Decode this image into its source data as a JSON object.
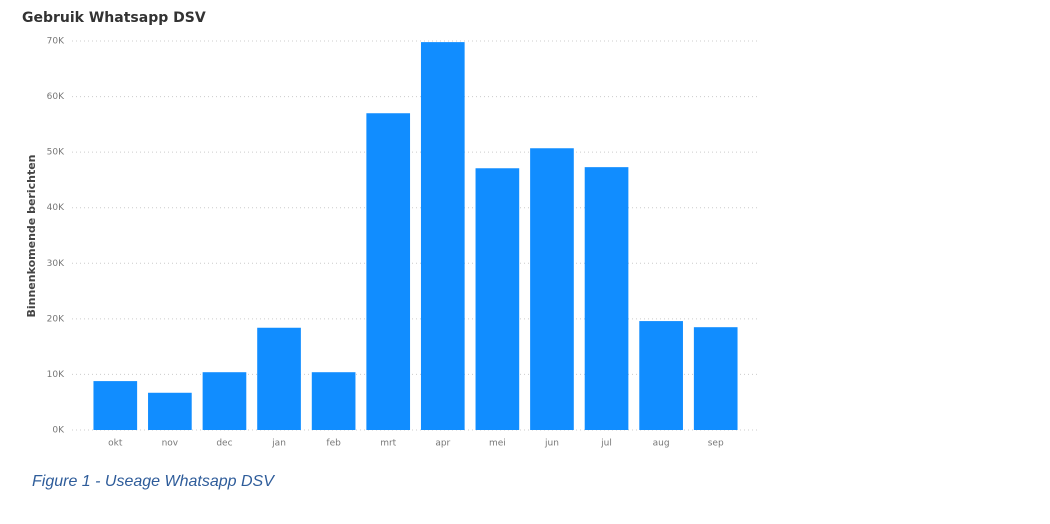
{
  "chart_data": {
    "type": "bar",
    "title": "Gebruik Whatsapp DSV",
    "y_label": "Binnenkomende berichten",
    "caption": "Figure 1 - Useage Whatsapp DSV",
    "categories": [
      "okt",
      "nov",
      "dec",
      "jan",
      "feb",
      "mrt",
      "apr",
      "mei",
      "jun",
      "jul",
      "aug",
      "sep"
    ],
    "values": [
      8800,
      6700,
      10400,
      18400,
      10400,
      57000,
      69800,
      47100,
      50700,
      47300,
      19600,
      18500
    ],
    "color": "#118dff",
    "ylim": [
      0,
      70000
    ],
    "yticks": [
      {
        "value": 0,
        "label": "0K"
      },
      {
        "value": 10000,
        "label": "10K"
      },
      {
        "value": 20000,
        "label": "20K"
      },
      {
        "value": 30000,
        "label": "30K"
      },
      {
        "value": 40000,
        "label": "40K"
      },
      {
        "value": 50000,
        "label": "50K"
      },
      {
        "value": 60000,
        "label": "60K"
      },
      {
        "value": 70000,
        "label": "70K"
      }
    ],
    "grid": true
  }
}
